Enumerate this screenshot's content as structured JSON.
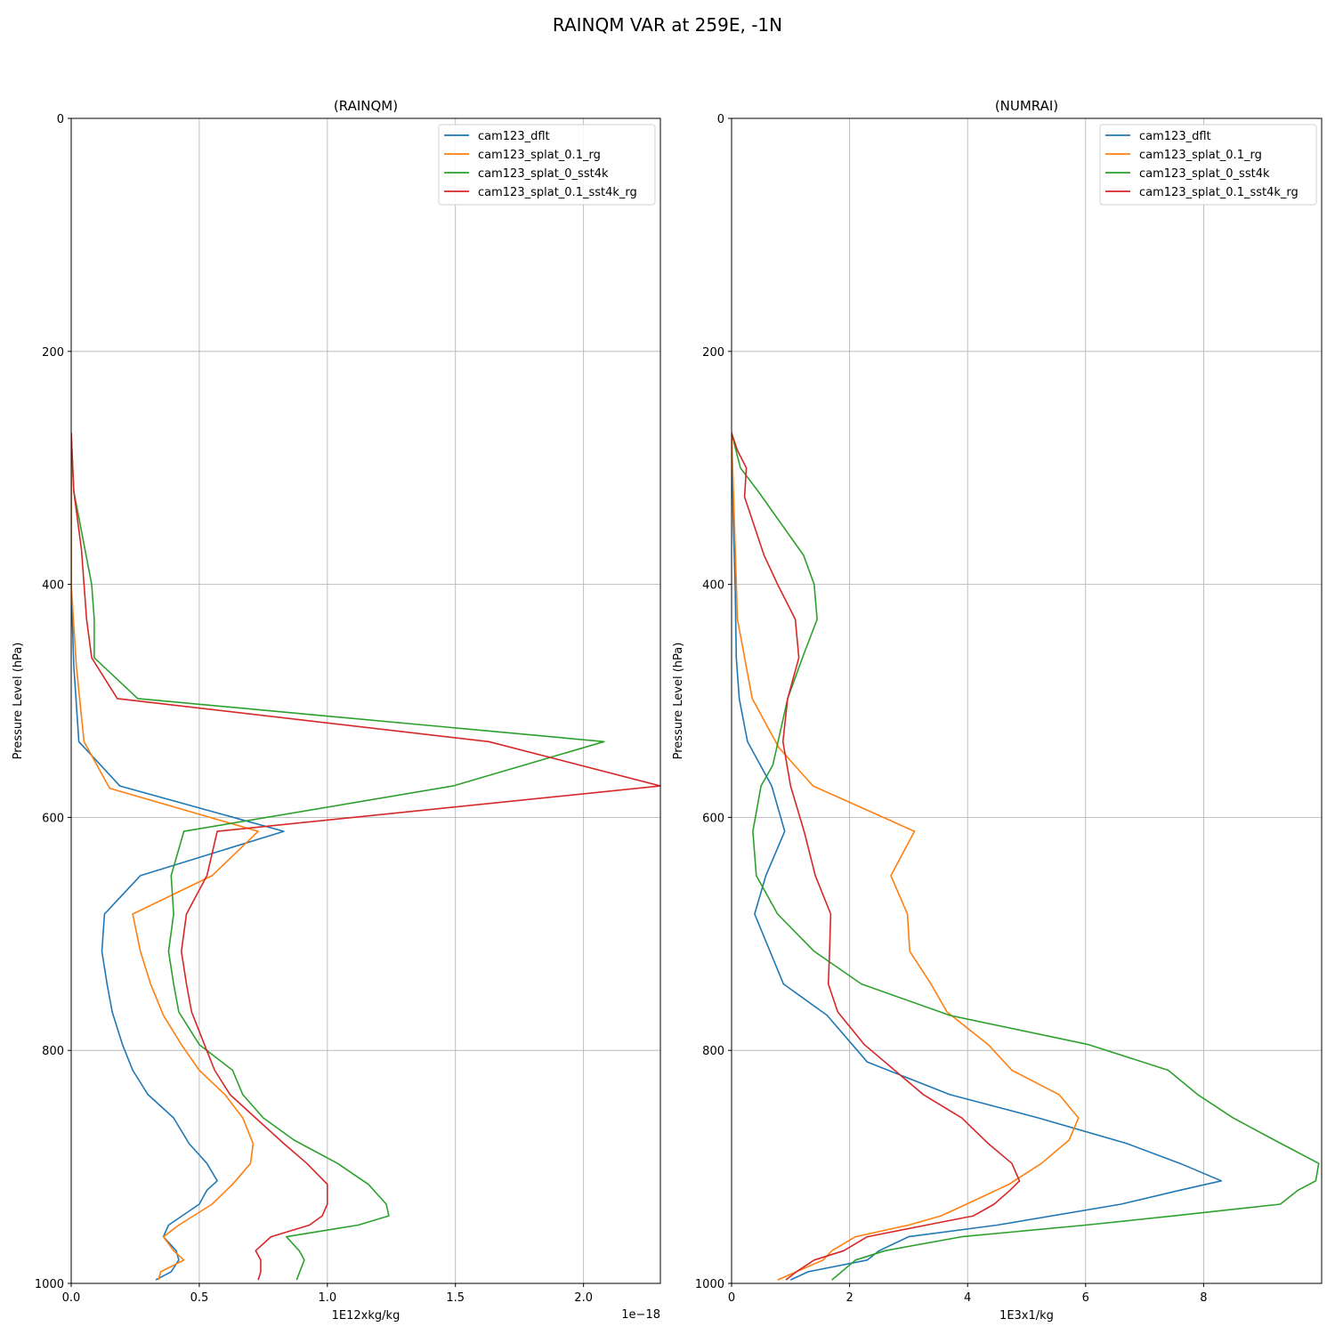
{
  "title": "RAINQM VAR at 259E, -1N",
  "colors": {
    "cam123_dflt": "#1f77b4",
    "cam123_splat_0.1_rg": "#ff7f0e",
    "cam123_splat_0_sst4k": "#2ca02c",
    "cam123_splat_0.1_sst4k_rg": "#d62728"
  },
  "chart_data": [
    {
      "type": "line",
      "title": "(RAINQM)",
      "xlabel": "1E12xkg/kg",
      "ylabel": "Pressure Level (hPa)",
      "offset_text": "1e−18",
      "xlim": [
        0,
        2.3
      ],
      "ylim": [
        1000,
        0
      ],
      "xticks": [
        0.0,
        0.5,
        1.0,
        1.5,
        2.0
      ],
      "xtick_labels": [
        "0.0",
        "0.5",
        "1.0",
        "1.5",
        "2.0"
      ],
      "yticks": [
        0,
        200,
        400,
        600,
        800,
        1000
      ],
      "ytick_labels": [
        "0",
        "200",
        "400",
        "600",
        "800",
        "1000"
      ],
      "grid": true,
      "legend": "upper right",
      "series": [
        {
          "name": "cam123_dflt",
          "points": [
            [
              0,
              270
            ],
            [
              0,
              400
            ],
            [
              0.01,
              470
            ],
            [
              0.03,
              535
            ],
            [
              0.19,
              573
            ],
            [
              0.83,
              612
            ],
            [
              0.27,
              650
            ],
            [
              0.13,
              683
            ],
            [
              0.12,
              715
            ],
            [
              0.14,
              743
            ],
            [
              0.16,
              767
            ],
            [
              0.2,
              795
            ],
            [
              0.24,
              817
            ],
            [
              0.3,
              838
            ],
            [
              0.4,
              858
            ],
            [
              0.46,
              880
            ],
            [
              0.53,
              897
            ],
            [
              0.57,
              912
            ],
            [
              0.53,
              920
            ],
            [
              0.5,
              932
            ],
            [
              0.38,
              950
            ],
            [
              0.36,
              960
            ],
            [
              0.41,
              972
            ],
            [
              0.42,
              980
            ],
            [
              0.39,
              990
            ],
            [
              0.33,
              997
            ]
          ]
        },
        {
          "name": "cam123_splat_0.1_rg",
          "points": [
            [
              0,
              270
            ],
            [
              0,
              400
            ],
            [
              0.02,
              470
            ],
            [
              0.05,
              535
            ],
            [
              0.15,
              575
            ],
            [
              0.73,
              612
            ],
            [
              0.55,
              650
            ],
            [
              0.24,
              683
            ],
            [
              0.27,
              715
            ],
            [
              0.31,
              743
            ],
            [
              0.36,
              770
            ],
            [
              0.43,
              795
            ],
            [
              0.5,
              817
            ],
            [
              0.6,
              838
            ],
            [
              0.67,
              858
            ],
            [
              0.71,
              880
            ],
            [
              0.7,
              897
            ],
            [
              0.63,
              915
            ],
            [
              0.55,
              932
            ],
            [
              0.42,
              950
            ],
            [
              0.36,
              960
            ],
            [
              0.4,
              972
            ],
            [
              0.44,
              980
            ],
            [
              0.35,
              990
            ],
            [
              0.34,
              997
            ]
          ]
        },
        {
          "name": "cam123_splat_0_sst4k",
          "points": [
            [
              0,
              270
            ],
            [
              0.01,
              320
            ],
            [
              0.08,
              400
            ],
            [
              0.09,
              430
            ],
            [
              0.09,
              463
            ],
            [
              0.26,
              498
            ],
            [
              2.08,
              535
            ],
            [
              1.49,
              573
            ],
            [
              0.44,
              612
            ],
            [
              0.39,
              650
            ],
            [
              0.4,
              683
            ],
            [
              0.38,
              715
            ],
            [
              0.4,
              743
            ],
            [
              0.42,
              767
            ],
            [
              0.5,
              795
            ],
            [
              0.63,
              817
            ],
            [
              0.67,
              838
            ],
            [
              0.75,
              858
            ],
            [
              0.87,
              877
            ],
            [
              1.04,
              897
            ],
            [
              1.16,
              915
            ],
            [
              1.23,
              932
            ],
            [
              1.24,
              942
            ],
            [
              1.12,
              950
            ],
            [
              0.84,
              960
            ],
            [
              0.89,
              972
            ],
            [
              0.91,
              980
            ],
            [
              0.88,
              997
            ]
          ]
        },
        {
          "name": "cam123_splat_0.1_sst4k_rg",
          "points": [
            [
              0,
              270
            ],
            [
              0.01,
              320
            ],
            [
              0.04,
              370
            ],
            [
              0.06,
              430
            ],
            [
              0.08,
              463
            ],
            [
              0.18,
              498
            ],
            [
              1.63,
              535
            ],
            [
              2.3,
              573
            ],
            [
              0.57,
              612
            ],
            [
              0.53,
              650
            ],
            [
              0.45,
              683
            ],
            [
              0.43,
              715
            ],
            [
              0.45,
              743
            ],
            [
              0.47,
              767
            ],
            [
              0.52,
              795
            ],
            [
              0.56,
              817
            ],
            [
              0.62,
              838
            ],
            [
              0.72,
              858
            ],
            [
              0.83,
              880
            ],
            [
              0.92,
              897
            ],
            [
              1.0,
              915
            ],
            [
              1.0,
              932
            ],
            [
              0.98,
              942
            ],
            [
              0.93,
              950
            ],
            [
              0.78,
              960
            ],
            [
              0.72,
              972
            ],
            [
              0.74,
              980
            ],
            [
              0.74,
              990
            ],
            [
              0.73,
              997
            ]
          ]
        }
      ]
    },
    {
      "type": "line",
      "title": "(NUMRAI)",
      "xlabel": "1E3x1/kg",
      "ylabel": "Pressure Level (hPa)",
      "xlim": [
        0,
        10
      ],
      "ylim": [
        1000,
        0
      ],
      "xticks": [
        0,
        2,
        4,
        6,
        8
      ],
      "xtick_labels": [
        "0",
        "2",
        "4",
        "6",
        "8"
      ],
      "yticks": [
        0,
        200,
        400,
        600,
        800,
        1000
      ],
      "ytick_labels": [
        "0",
        "200",
        "400",
        "600",
        "800",
        "1000"
      ],
      "grid": true,
      "legend": "upper right",
      "series": [
        {
          "name": "cam123_dflt",
          "points": [
            [
              0,
              270
            ],
            [
              0.03,
              350
            ],
            [
              0.06,
              400
            ],
            [
              0.08,
              463
            ],
            [
              0.13,
              498
            ],
            [
              0.27,
              535
            ],
            [
              0.68,
              573
            ],
            [
              0.9,
              612
            ],
            [
              0.58,
              650
            ],
            [
              0.39,
              683
            ],
            [
              0.88,
              743
            ],
            [
              1.62,
              770
            ],
            [
              2.3,
              810
            ],
            [
              3.7,
              838
            ],
            [
              5.2,
              858
            ],
            [
              6.7,
              880
            ],
            [
              7.6,
              897
            ],
            [
              8.3,
              912
            ],
            [
              7.6,
              920
            ],
            [
              6.6,
              932
            ],
            [
              4.5,
              950
            ],
            [
              3.0,
              960
            ],
            [
              2.5,
              972
            ],
            [
              2.3,
              980
            ],
            [
              1.3,
              990
            ],
            [
              1.0,
              997
            ]
          ]
        },
        {
          "name": "cam123_splat_0.1_rg",
          "points": [
            [
              0,
              270
            ],
            [
              0.05,
              350
            ],
            [
              0.1,
              430
            ],
            [
              0.35,
              498
            ],
            [
              0.8,
              540
            ],
            [
              1.38,
              573
            ],
            [
              3.1,
              612
            ],
            [
              2.7,
              650
            ],
            [
              2.98,
              683
            ],
            [
              3.02,
              715
            ],
            [
              3.38,
              743
            ],
            [
              3.65,
              767
            ],
            [
              4.35,
              795
            ],
            [
              4.75,
              817
            ],
            [
              5.55,
              838
            ],
            [
              5.88,
              858
            ],
            [
              5.72,
              877
            ],
            [
              5.25,
              897
            ],
            [
              4.7,
              915
            ],
            [
              3.98,
              932
            ],
            [
              3.55,
              942
            ],
            [
              3.0,
              950
            ],
            [
              2.1,
              960
            ],
            [
              1.7,
              972
            ],
            [
              1.55,
              980
            ],
            [
              1.1,
              990
            ],
            [
              0.78,
              997
            ]
          ]
        },
        {
          "name": "cam123_splat_0_sst4k",
          "points": [
            [
              0,
              270
            ],
            [
              0.15,
              300
            ],
            [
              0.45,
              320
            ],
            [
              1.22,
              375
            ],
            [
              1.4,
              400
            ],
            [
              1.45,
              430
            ],
            [
              1.2,
              463
            ],
            [
              0.95,
              498
            ],
            [
              0.7,
              555
            ],
            [
              0.5,
              573
            ],
            [
              0.36,
              612
            ],
            [
              0.42,
              650
            ],
            [
              0.78,
              683
            ],
            [
              1.4,
              715
            ],
            [
              2.2,
              743
            ],
            [
              3.7,
              770
            ],
            [
              6.05,
              795
            ],
            [
              7.4,
              817
            ],
            [
              7.9,
              838
            ],
            [
              8.5,
              858
            ],
            [
              9.2,
              877
            ],
            [
              9.95,
              897
            ],
            [
              9.9,
              912
            ],
            [
              9.6,
              920
            ],
            [
              9.3,
              932
            ],
            [
              7.5,
              942
            ],
            [
              6.0,
              950
            ],
            [
              3.9,
              960
            ],
            [
              2.6,
              972
            ],
            [
              2.1,
              980
            ],
            [
              1.7,
              997
            ]
          ]
        },
        {
          "name": "cam123_splat_0.1_sst4k_rg",
          "points": [
            [
              0,
              270
            ],
            [
              0.1,
              285
            ],
            [
              0.25,
              300
            ],
            [
              0.22,
              325
            ],
            [
              0.55,
              375
            ],
            [
              0.78,
              400
            ],
            [
              1.08,
              430
            ],
            [
              1.14,
              463
            ],
            [
              0.95,
              498
            ],
            [
              0.87,
              535
            ],
            [
              1.0,
              573
            ],
            [
              1.23,
              612
            ],
            [
              1.42,
              650
            ],
            [
              1.68,
              683
            ],
            [
              1.66,
              715
            ],
            [
              1.64,
              743
            ],
            [
              1.8,
              767
            ],
            [
              2.25,
              795
            ],
            [
              3.25,
              838
            ],
            [
              3.9,
              858
            ],
            [
              4.35,
              880
            ],
            [
              4.75,
              897
            ],
            [
              4.88,
              912
            ],
            [
              4.72,
              920
            ],
            [
              4.45,
              932
            ],
            [
              4.1,
              942
            ],
            [
              3.3,
              950
            ],
            [
              2.3,
              960
            ],
            [
              1.9,
              972
            ],
            [
              1.4,
              980
            ],
            [
              1.1,
              990
            ],
            [
              0.92,
              997
            ]
          ]
        }
      ]
    }
  ]
}
